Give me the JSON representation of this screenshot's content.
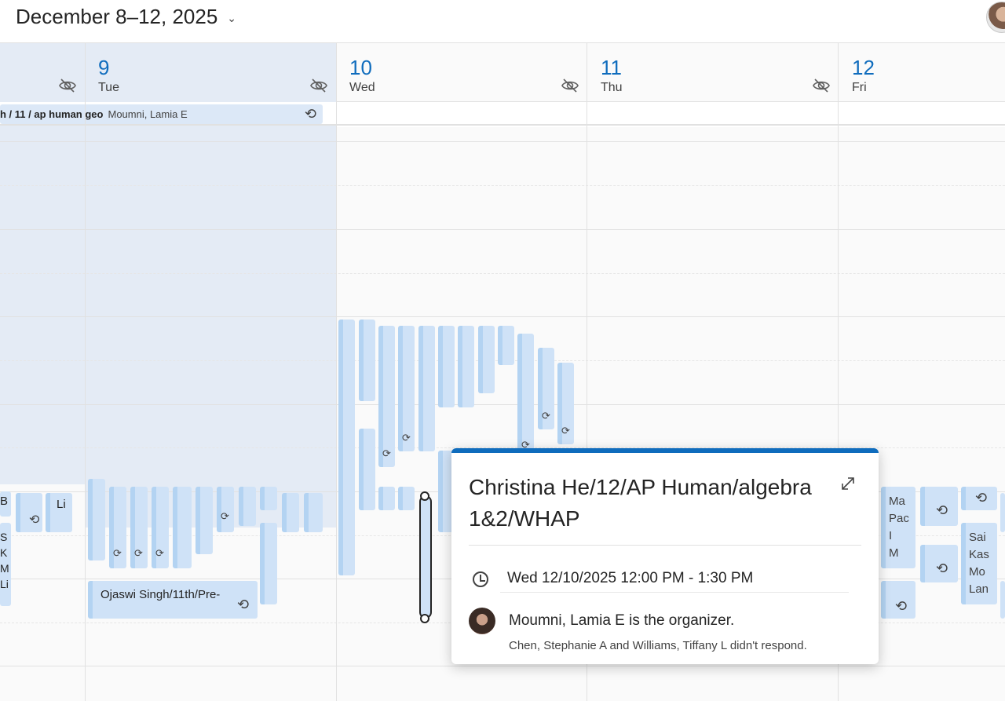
{
  "header": {
    "date_range": "December 8–12, 2025",
    "chevron_icon": "chevron-down-icon",
    "avatar_icon": "user-avatar"
  },
  "days": [
    {
      "num": "9",
      "dow": "Tue"
    },
    {
      "num": "10",
      "dow": "Wed"
    },
    {
      "num": "11",
      "dow": "Thu"
    },
    {
      "num": "12",
      "dow": "Fri"
    }
  ],
  "allday_event": {
    "title": "h / 11 / ap human geo",
    "organizer": "Moumni, Lamia E",
    "repeat_icon": "repeat-icon"
  },
  "mon_events": {
    "b": "B",
    "li": "Li",
    "stack": "S\nK\nM\nLi"
  },
  "tue_events": {
    "ojaswi": "Ojaswi Singh/11th/Pre-"
  },
  "fri_events": {
    "ma": "Ma\nPac\nI\nM",
    "sai": "Sai\nKas\nMo\nLan"
  },
  "popup": {
    "title": "Christina He/12/AP Human/algebra 1&2/WHAP",
    "time": "Wed 12/10/2025 12:00 PM - 1:30 PM",
    "organizer": "Moumni, Lamia E is the organizer.",
    "responses": "Chen, Stephanie A and Williams, Tiffany L didn't respond."
  },
  "colors": {
    "accent": "#0f6cbd",
    "event_fill": "#cfe2f7",
    "event_bar": "#b3d3f2",
    "selected_bg": "#e4ebf5"
  }
}
